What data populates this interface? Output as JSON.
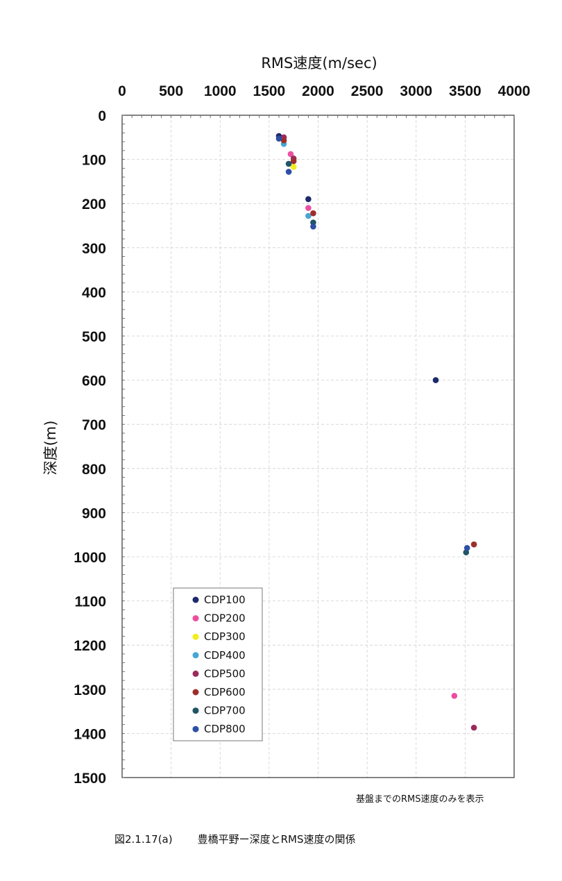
{
  "chart_data": {
    "type": "scatter",
    "xlabel": "RMS速度(m/sec)",
    "ylabel": "深度(m)",
    "xlim": [
      0,
      4000
    ],
    "ylim": [
      0,
      1500
    ],
    "y_inverted": true,
    "x_axis_position": "top",
    "x_ticks": [
      0,
      500,
      1000,
      1500,
      2000,
      2500,
      3000,
      3500,
      4000
    ],
    "y_ticks": [
      0,
      100,
      200,
      300,
      400,
      500,
      600,
      700,
      800,
      900,
      1000,
      1100,
      1200,
      1300,
      1400,
      1500
    ],
    "grid": true,
    "legend_position": "bottom-left",
    "series": [
      {
        "name": "CDP100",
        "color": "#1c2a6b",
        "points": [
          [
            1600,
            47
          ],
          [
            1900,
            190
          ],
          [
            3200,
            600
          ]
        ]
      },
      {
        "name": "CDP200",
        "color": "#ec4fa0",
        "points": [
          [
            1720,
            88
          ],
          [
            1900,
            210
          ],
          [
            3390,
            1315
          ]
        ]
      },
      {
        "name": "CDP300",
        "color": "#f2ee1c",
        "points": [
          [
            1750,
            117
          ]
        ]
      },
      {
        "name": "CDP400",
        "color": "#49a6d4",
        "points": [
          [
            1650,
            65
          ],
          [
            1900,
            228
          ]
        ]
      },
      {
        "name": "CDP500",
        "color": "#9b2a5c",
        "points": [
          [
            1650,
            50
          ],
          [
            1750,
            98
          ],
          [
            3590,
            1387
          ]
        ]
      },
      {
        "name": "CDP600",
        "color": "#9c2f2b",
        "points": [
          [
            1650,
            57
          ],
          [
            1750,
            104
          ],
          [
            1950,
            222
          ],
          [
            3590,
            972
          ]
        ]
      },
      {
        "name": "CDP700",
        "color": "#1f5566",
        "points": [
          [
            1700,
            110
          ],
          [
            1950,
            243
          ],
          [
            3510,
            990
          ]
        ]
      },
      {
        "name": "CDP800",
        "color": "#2d4fa5",
        "points": [
          [
            1600,
            53
          ],
          [
            1700,
            128
          ],
          [
            1950,
            252
          ],
          [
            3520,
            980
          ]
        ]
      }
    ]
  },
  "note": "基盤までのRMS速度のみを表示",
  "caption": {
    "number": "図2.1.17(a)",
    "text": "豊橋平野ー深度とRMS速度の関係"
  }
}
